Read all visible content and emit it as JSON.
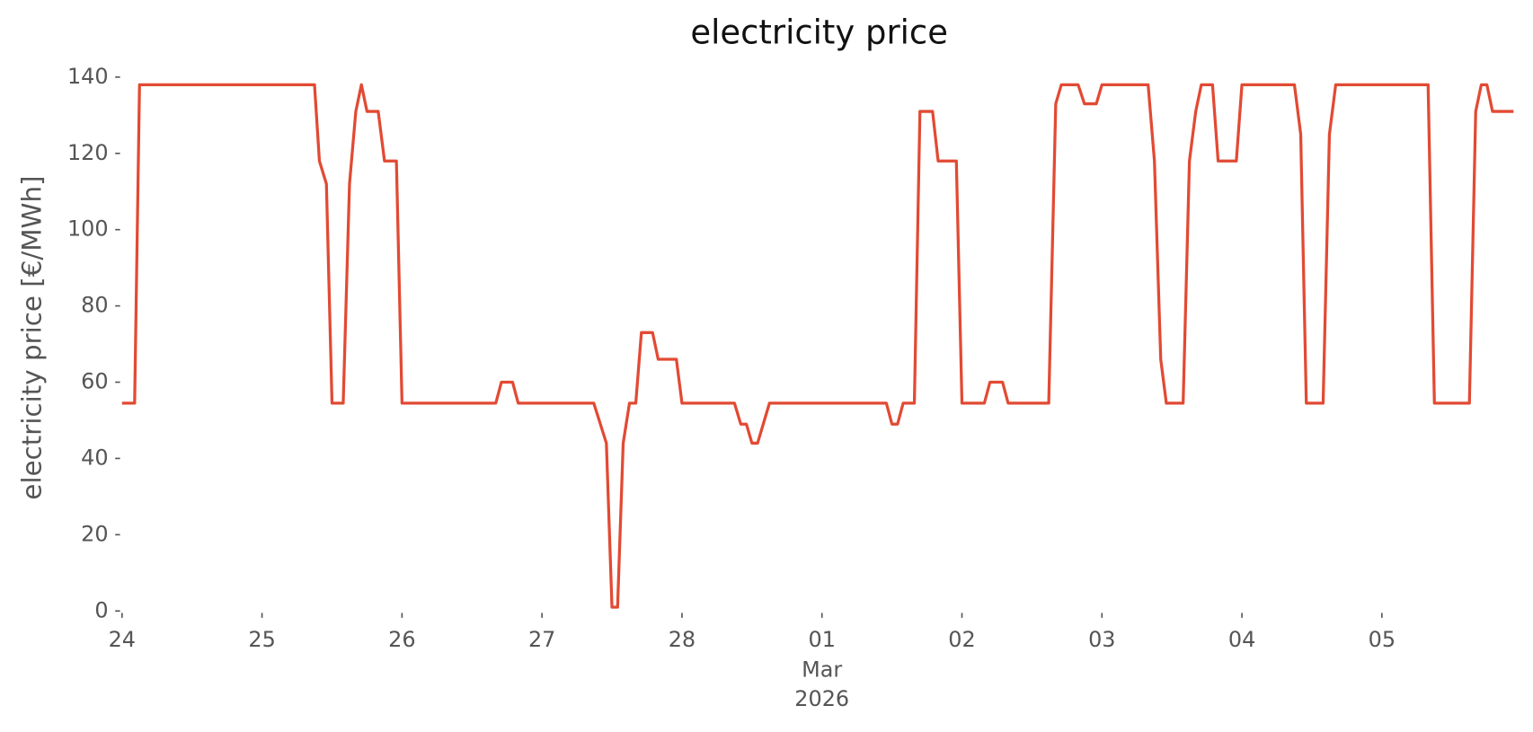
{
  "chart_data": {
    "type": "line",
    "title": "electricity price",
    "y_label": "electricity price [€/MWh]",
    "x": [
      0,
      0.09,
      0.125,
      1.375,
      1.41,
      1.46,
      1.5,
      1.58,
      1.625,
      1.67,
      1.71,
      1.75,
      1.83,
      1.875,
      1.96,
      2.0,
      2.67,
      2.71,
      2.79,
      2.83,
      3.37,
      3.46,
      3.5,
      3.54,
      3.58,
      3.625,
      3.67,
      3.71,
      3.79,
      3.83,
      3.96,
      4.0,
      4.375,
      4.42,
      4.46,
      4.5,
      4.54,
      4.625,
      5.46,
      5.5,
      5.54,
      5.58,
      5.66,
      5.7,
      5.79,
      5.83,
      5.96,
      6.0,
      6.16,
      6.2,
      6.29,
      6.33,
      6.62,
      6.67,
      6.71,
      6.83,
      6.875,
      6.96,
      7.0,
      7.33,
      7.375,
      7.42,
      7.46,
      7.58,
      7.625,
      7.67,
      7.71,
      7.79,
      7.83,
      7.96,
      8.0,
      8.375,
      8.42,
      8.46,
      8.58,
      8.625,
      8.67,
      9.33,
      9.375,
      9.625,
      9.67,
      9.71,
      9.75,
      9.79,
      9.94
    ],
    "series": [
      {
        "name": "electricity price",
        "color": "#e24a33",
        "values": [
          54.5,
          54.5,
          138,
          138,
          118,
          112,
          54.5,
          54.5,
          112,
          131,
          138,
          131,
          131,
          118,
          118,
          54.5,
          54.5,
          60,
          60,
          54.5,
          54.5,
          44,
          1,
          1,
          44,
          54.5,
          54.5,
          73,
          73,
          66,
          66,
          54.5,
          54.5,
          49,
          49,
          44,
          44,
          54.5,
          54.5,
          49,
          49,
          54.5,
          54.5,
          131,
          131,
          118,
          118,
          54.5,
          54.5,
          60,
          60,
          54.5,
          54.5,
          133,
          138,
          138,
          133,
          133,
          138,
          138,
          118,
          66,
          54.5,
          54.5,
          118,
          131,
          138,
          138,
          118,
          118,
          138,
          138,
          125,
          54.5,
          54.5,
          125,
          138,
          138,
          54.5,
          54.5,
          131,
          138,
          138,
          131,
          131
        ]
      }
    ],
    "xlim": [
      0,
      9.94
    ],
    "xticks": [
      {
        "value": 0,
        "label": "24"
      },
      {
        "value": 1,
        "label": "25"
      },
      {
        "value": 2,
        "label": "26"
      },
      {
        "value": 3,
        "label": "27"
      },
      {
        "value": 4,
        "label": "28"
      },
      {
        "value": 5,
        "label": "01"
      },
      {
        "value": 6,
        "label": "02"
      },
      {
        "value": 7,
        "label": "03"
      },
      {
        "value": 8,
        "label": "04"
      },
      {
        "value": 9,
        "label": "05"
      }
    ],
    "xtick_sublabels": [
      "Mar",
      "2026"
    ],
    "ylim": [
      0,
      140
    ],
    "yticks": [
      0,
      20,
      40,
      60,
      80,
      100,
      120,
      140
    ],
    "grid": false
  }
}
